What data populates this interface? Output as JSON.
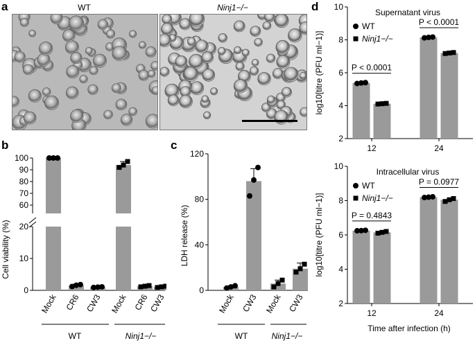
{
  "panel_letters": {
    "a": "a",
    "b": "b",
    "c": "c",
    "d": "d"
  },
  "micrographs": {
    "wt_label": "WT",
    "ninj1_label": "Ninj1−/−"
  },
  "colors": {
    "bar": "#9a9a9a",
    "dot": "#000000",
    "image_bg_wt": "#b8b8b8",
    "image_bg_ko": "#d2d2d2"
  },
  "chart_data": [
    {
      "id": "b",
      "type": "bar",
      "ylabel": "Cell viability (%)",
      "axis_break": true,
      "y_ticks_lower": [
        "0",
        "10",
        "20"
      ],
      "y_ticks_upper": [
        "60",
        "70",
        "80",
        "90",
        "100"
      ],
      "categories": [
        "Mock",
        "CR6",
        "CW3",
        "Mock",
        "CR6",
        "CW3"
      ],
      "groups": [
        {
          "label": "WT",
          "span": [
            0,
            2
          ]
        },
        {
          "label": "Ninj1−/−",
          "span": [
            3,
            5
          ]
        }
      ],
      "values": [
        100,
        1.5,
        1.0,
        94,
        1.3,
        1.1
      ],
      "errors": [
        0.3,
        0.4,
        0.2,
        3,
        0.3,
        0.3
      ],
      "points": [
        [
          100,
          100,
          100
        ],
        [
          1.2,
          1.6,
          1.8
        ],
        [
          0.9,
          1.0,
          1.1
        ],
        [
          92,
          94,
          97
        ],
        [
          1.1,
          1.3,
          1.5
        ],
        [
          0.9,
          1.1,
          1.3
        ]
      ]
    },
    {
      "id": "c",
      "type": "bar",
      "ylabel": "LDH release (%)",
      "ylim": [
        0,
        120
      ],
      "y_ticks": [
        "0",
        "40",
        "80",
        "120"
      ],
      "categories": [
        "Mock",
        "CW3",
        "Mock",
        "CW3"
      ],
      "groups": [
        {
          "label": "WT",
          "span": [
            0,
            1
          ]
        },
        {
          "label": "Ninj1−/−",
          "span": [
            2,
            3
          ]
        }
      ],
      "values": [
        3,
        96,
        6,
        19
      ],
      "errors": [
        1,
        11,
        3,
        5
      ],
      "points": [
        [
          2,
          3,
          4
        ],
        [
          83,
          97,
          108
        ],
        [
          3,
          6,
          9
        ],
        [
          16,
          19,
          23
        ]
      ]
    },
    {
      "id": "d-top",
      "type": "bar",
      "title": "Supernatant virus",
      "ylabel": "log10[titre (PFU ml−1)]",
      "ylim": [
        2,
        10
      ],
      "y_ticks": [
        "2",
        "4",
        "6",
        "8",
        "10"
      ],
      "categories": [
        "12",
        "24"
      ],
      "legend": [
        "WT",
        "Ninj1−/−"
      ],
      "series": [
        {
          "name": "WT",
          "values": [
            5.38,
            8.15
          ],
          "points": [
            [
              5.35,
              5.38,
              5.4
            ],
            [
              8.12,
              8.15,
              8.17
            ]
          ]
        },
        {
          "name": "Ninj1−/−",
          "values": [
            4.12,
            7.2
          ],
          "points": [
            [
              4.1,
              4.12,
              4.14
            ],
            [
              7.17,
              7.2,
              7.23
            ]
          ]
        }
      ],
      "annotations": [
        "P < 0.0001",
        "P < 0.0001"
      ]
    },
    {
      "id": "d-bottom",
      "type": "bar",
      "title": "Intracellular virus",
      "ylabel": "log10[titre (PFU ml−1)]",
      "xlabel": "Time after infection (h)",
      "ylim": [
        2,
        10
      ],
      "y_ticks": [
        "2",
        "4",
        "6",
        "8",
        "10"
      ],
      "categories": [
        "12",
        "24"
      ],
      "legend": [
        "WT",
        "Ninj1−/−"
      ],
      "series": [
        {
          "name": "WT",
          "values": [
            6.25,
            8.2
          ],
          "points": [
            [
              6.24,
              6.25,
              6.27
            ],
            [
              8.18,
              8.2,
              8.22
            ]
          ]
        },
        {
          "name": "Ninj1−/−",
          "values": [
            6.15,
            8.05
          ],
          "points": [
            [
              6.1,
              6.15,
              6.2
            ],
            [
              7.95,
              8.05,
              8.12
            ]
          ]
        }
      ],
      "annotations": [
        "P = 0.4843",
        "P = 0.0977"
      ]
    }
  ]
}
